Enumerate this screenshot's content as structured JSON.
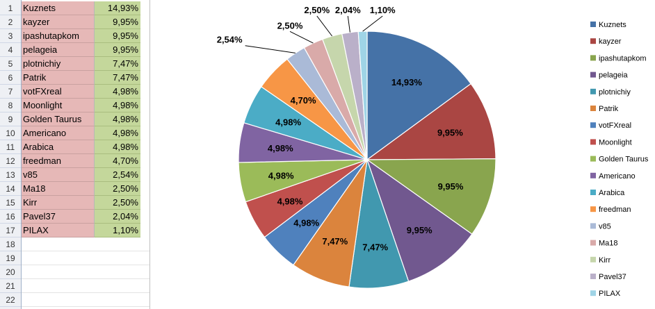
{
  "sheet": {
    "row_numbers": [
      "1",
      "2",
      "3",
      "4",
      "5",
      "6",
      "7",
      "8",
      "9",
      "10",
      "11",
      "12",
      "13",
      "14",
      "15",
      "16",
      "17",
      "18",
      "19",
      "20",
      "21",
      "22"
    ],
    "rows": [
      {
        "name": "Kuznets",
        "pct": "14,93%"
      },
      {
        "name": "kayzer",
        "pct": "9,95%"
      },
      {
        "name": "ipashutapkom",
        "pct": "9,95%"
      },
      {
        "name": "pelageia",
        "pct": "9,95%"
      },
      {
        "name": "plotnichiy",
        "pct": "7,47%"
      },
      {
        "name": "Patrik",
        "pct": "7,47%"
      },
      {
        "name": "votFXreal",
        "pct": "4,98%"
      },
      {
        "name": "Moonlight",
        "pct": "4,98%"
      },
      {
        "name": "Golden Taurus",
        "pct": "4,98%"
      },
      {
        "name": "Americano",
        "pct": "4,98%"
      },
      {
        "name": "Arabica",
        "pct": "4,98%"
      },
      {
        "name": "freedman",
        "pct": "4,70%"
      },
      {
        "name": "v85",
        "pct": "2,54%"
      },
      {
        "name": "Ma18",
        "pct": "2,50%"
      },
      {
        "name": "Kirr",
        "pct": "2,50%"
      },
      {
        "name": "Pavel37",
        "pct": "2,04%"
      },
      {
        "name": "PILAX",
        "pct": "1,10%"
      }
    ]
  },
  "chart_data": {
    "type": "pie",
    "title": "",
    "legend_position": "right",
    "slices": [
      {
        "label": "Kuznets",
        "value": 14.93,
        "display": "14,93%",
        "color": "#4572a7"
      },
      {
        "label": "kayzer",
        "value": 9.95,
        "display": "9,95%",
        "color": "#aa4643"
      },
      {
        "label": "ipashutapkom",
        "value": 9.95,
        "display": "9,95%",
        "color": "#89a54e"
      },
      {
        "label": "pelageia",
        "value": 9.95,
        "display": "9,95%",
        "color": "#71588f"
      },
      {
        "label": "plotnichiy",
        "value": 7.47,
        "display": "7,47%",
        "color": "#4198af"
      },
      {
        "label": "Patrik",
        "value": 7.47,
        "display": "7,47%",
        "color": "#db843d"
      },
      {
        "label": "votFXreal",
        "value": 4.98,
        "display": "4,98%",
        "color": "#4f81bd"
      },
      {
        "label": "Moonlight",
        "value": 4.98,
        "display": "4,98%",
        "color": "#c0504d"
      },
      {
        "label": "Golden Taurus",
        "value": 4.98,
        "display": "4,98%",
        "color": "#9bbb59"
      },
      {
        "label": "Americano",
        "value": 4.98,
        "display": "4,98%",
        "color": "#8064a2"
      },
      {
        "label": "Arabica",
        "value": 4.98,
        "display": "4,98%",
        "color": "#4bacc6"
      },
      {
        "label": "freedman",
        "value": 4.7,
        "display": "4,70%",
        "color": "#f79646"
      },
      {
        "label": "v85",
        "value": 2.54,
        "display": "2,54%",
        "color": "#aabad7"
      },
      {
        "label": "Ma18",
        "value": 2.5,
        "display": "2,50%",
        "color": "#d9aaa9"
      },
      {
        "label": "Kirr",
        "value": 2.5,
        "display": "2,50%",
        "color": "#c6d6ac"
      },
      {
        "label": "Pavel37",
        "value": 2.04,
        "display": "2,04%",
        "color": "#bab0c9"
      },
      {
        "label": "PILAX",
        "value": 1.1,
        "display": "1,10%",
        "color": "#9fd4e6"
      }
    ]
  }
}
